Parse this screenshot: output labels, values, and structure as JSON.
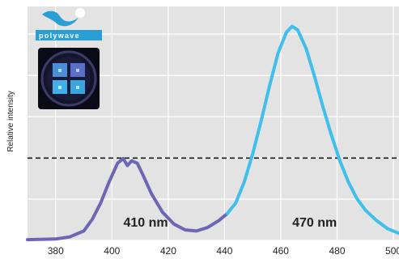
{
  "brand": {
    "name": "polywave"
  },
  "colors": {
    "plot_bg": "#e3e3e3",
    "grid": "#ffffff",
    "series_410": "#6e66b5",
    "series_470": "#3fbfea",
    "reference_line": "#1a1a1a",
    "logo_blue": "#2a9fd6",
    "tile_bg": "#0b0b17"
  },
  "chart_data": {
    "type": "line",
    "ylabel": "Relative intensity",
    "xlim": [
      370,
      502
    ],
    "ylim": [
      0,
      1.0
    ],
    "x_ticks": [
      380,
      400,
      420,
      440,
      460,
      480,
      500
    ],
    "y_grid": [
      0,
      0.176,
      0.352,
      0.529,
      0.705,
      0.882
    ],
    "grid": true,
    "reference_line": {
      "y": 0.352,
      "style": "dashed"
    },
    "annotations": [
      {
        "text": "410 nm",
        "x": 412,
        "y": 0.058
      },
      {
        "text": "470 nm",
        "x": 472,
        "y": 0.058
      }
    ],
    "series": [
      {
        "color_key": "series_410",
        "points": [
          [
            370,
            0.003
          ],
          [
            380,
            0.006
          ],
          [
            385,
            0.015
          ],
          [
            390,
            0.04
          ],
          [
            393,
            0.09
          ],
          [
            396,
            0.16
          ],
          [
            399,
            0.25
          ],
          [
            402,
            0.33
          ],
          [
            404,
            0.35
          ],
          [
            405.5,
            0.32
          ],
          [
            407,
            0.34
          ],
          [
            409,
            0.33
          ],
          [
            411,
            0.28
          ],
          [
            414,
            0.2
          ],
          [
            418,
            0.12
          ],
          [
            422,
            0.07
          ],
          [
            426,
            0.045
          ],
          [
            430,
            0.04
          ],
          [
            434,
            0.055
          ],
          [
            438,
            0.085
          ],
          [
            441,
            0.115
          ]
        ]
      },
      {
        "color_key": "series_470",
        "points": [
          [
            441,
            0.115
          ],
          [
            444,
            0.16
          ],
          [
            447,
            0.25
          ],
          [
            450,
            0.37
          ],
          [
            453,
            0.51
          ],
          [
            456,
            0.66
          ],
          [
            459,
            0.8
          ],
          [
            462,
            0.89
          ],
          [
            464,
            0.915
          ],
          [
            466,
            0.9
          ],
          [
            469,
            0.82
          ],
          [
            472,
            0.7
          ],
          [
            475,
            0.57
          ],
          [
            478,
            0.45
          ],
          [
            481,
            0.34
          ],
          [
            484,
            0.25
          ],
          [
            487,
            0.18
          ],
          [
            490,
            0.13
          ],
          [
            494,
            0.085
          ],
          [
            498,
            0.05
          ],
          [
            502,
            0.03
          ]
        ]
      }
    ]
  }
}
